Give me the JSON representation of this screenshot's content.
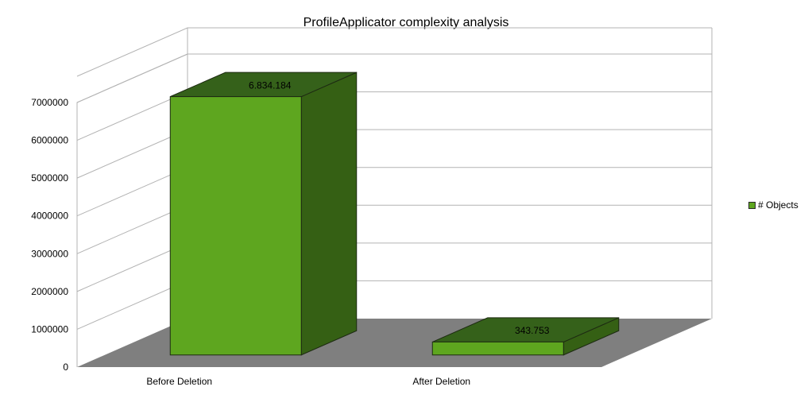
{
  "chart_data": {
    "type": "bar",
    "title": "ProfileApplicator complexity analysis",
    "categories": [
      "Before Deletion",
      "After Deletion"
    ],
    "series": [
      {
        "name": "# Objects",
        "values": [
          6834184,
          343753
        ],
        "labels": [
          "6.834.184",
          "343.753"
        ]
      }
    ],
    "y_ticks": [
      "0",
      "1000000",
      "2000000",
      "3000000",
      "4000000",
      "5000000",
      "6000000",
      "7000000"
    ],
    "ylim": [
      0,
      7000000
    ],
    "grid": true,
    "legend": "right",
    "three_d": true,
    "colors": {
      "bar_front": "#5ea61f",
      "bar_top": "#35611a",
      "bar_side": "#356014",
      "floor": "#7f7f7f",
      "grid": "#b3b3b3",
      "bar_outline": "#1d2a12"
    }
  }
}
